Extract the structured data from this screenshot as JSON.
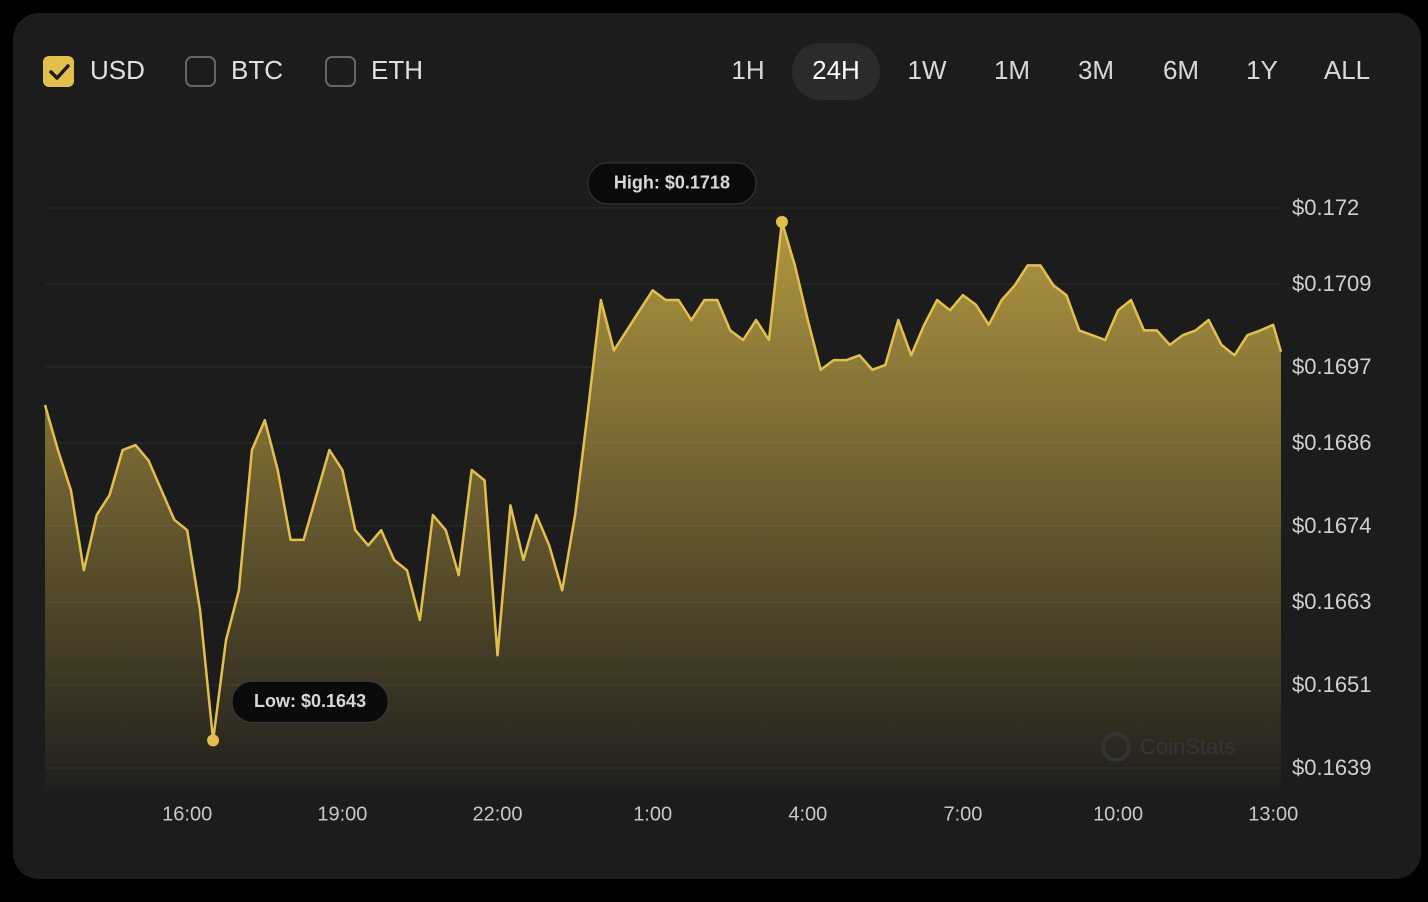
{
  "currencies": [
    {
      "label": "USD",
      "checked": true
    },
    {
      "label": "BTC",
      "checked": false
    },
    {
      "label": "ETH",
      "checked": false
    }
  ],
  "ranges": [
    {
      "label": "1H",
      "active": false
    },
    {
      "label": "24H",
      "active": true
    },
    {
      "label": "1W",
      "active": false
    },
    {
      "label": "1M",
      "active": false
    },
    {
      "label": "3M",
      "active": false
    },
    {
      "label": "6M",
      "active": false
    },
    {
      "label": "1Y",
      "active": false
    },
    {
      "label": "ALL",
      "active": false
    }
  ],
  "watermark": "CoinStats",
  "chart_data": {
    "type": "area",
    "color": "#e3c04d",
    "grid": true,
    "annotations": [
      "High: $0.1718",
      "Low: $0.1643"
    ],
    "x": [
      13.25,
      13.5,
      13.75,
      14,
      14.25,
      14.5,
      14.75,
      15,
      15.25,
      15.5,
      15.75,
      16,
      16.25,
      16.5,
      16.75,
      17,
      17.25,
      17.5,
      17.75,
      18,
      18.25,
      18.5,
      18.75,
      19,
      19.25,
      19.5,
      19.75,
      20,
      20.25,
      20.5,
      20.75,
      21,
      21.25,
      21.5,
      21.75,
      22,
      22.25,
      22.5,
      22.75,
      23,
      23.25,
      23.5,
      23.75,
      24,
      24.25,
      24.5,
      24.75,
      25,
      25.25,
      25.5,
      25.75,
      26,
      26.25,
      26.5,
      26.75,
      27,
      27.25,
      27.5,
      27.75,
      28,
      28.25,
      28.5,
      28.75,
      29,
      29.25,
      29.5,
      29.75,
      30,
      30.25,
      30.5,
      30.75,
      31,
      31.25,
      31.5,
      31.75,
      32,
      32.25,
      32.5,
      32.75,
      33,
      33.25,
      33.5,
      33.75,
      34,
      34.25,
      34.5,
      34.75,
      35,
      35.25,
      35.5,
      35.75,
      36,
      36.25,
      36.5,
      36.75,
      37,
      37.15
    ],
    "values": [
      0.16915,
      0.1685,
      0.16792,
      0.16676,
      0.16756,
      0.16785,
      0.1685,
      0.16857,
      0.16835,
      0.16792,
      0.16749,
      0.16734,
      0.16618,
      0.1643,
      0.16575,
      0.16647,
      0.1685,
      0.16893,
      0.16821,
      0.1672,
      0.1672,
      0.16785,
      0.1685,
      0.16821,
      0.16734,
      0.16712,
      0.16734,
      0.16691,
      0.16676,
      0.16604,
      0.16756,
      0.16734,
      0.16669,
      0.16821,
      0.16806,
      0.16553,
      0.1677,
      0.16691,
      0.16756,
      0.16712,
      0.16647,
      0.16756,
      0.16908,
      0.17067,
      0.16994,
      0.17023,
      0.17052,
      0.17081,
      0.17067,
      0.17067,
      0.17038,
      0.17067,
      0.17067,
      0.17023,
      0.17009,
      0.17038,
      0.17009,
      0.1718,
      0.17117,
      0.17038,
      0.16966,
      0.1698,
      0.1698,
      0.16987,
      0.16966,
      0.16973,
      0.17038,
      0.16987,
      0.17031,
      0.17067,
      0.17052,
      0.17074,
      0.1706,
      0.17031,
      0.17067,
      0.17088,
      0.17117,
      0.17117,
      0.17088,
      0.17074,
      0.17023,
      0.17016,
      0.17009,
      0.17052,
      0.17067,
      0.17023,
      0.17023,
      0.17002,
      0.17016,
      0.17023,
      0.17038,
      0.17002,
      0.16987,
      0.17016,
      0.17023,
      0.17031,
      0.16992
    ],
    "xlim": [
      13.25,
      37.15
    ],
    "xticks": [
      {
        "value": 16,
        "label": "16:00"
      },
      {
        "value": 19,
        "label": "19:00"
      },
      {
        "value": 22,
        "label": "22:00"
      },
      {
        "value": 25,
        "label": "1:00"
      },
      {
        "value": 28,
        "label": "4:00"
      },
      {
        "value": 31,
        "label": "7:00"
      },
      {
        "value": 34,
        "label": "10:00"
      },
      {
        "value": 37,
        "label": "13:00"
      }
    ],
    "ylim": [
      0.1639,
      0.172
    ],
    "yticks": [
      {
        "value": 0.172,
        "label": "$0.172"
      },
      {
        "value": 0.1709,
        "label": "$0.1709"
      },
      {
        "value": 0.1697,
        "label": "$0.1697"
      },
      {
        "value": 0.1686,
        "label": "$0.1686"
      },
      {
        "value": 0.1674,
        "label": "$0.1674"
      },
      {
        "value": 0.1663,
        "label": "$0.1663"
      },
      {
        "value": 0.1651,
        "label": "$0.1651"
      },
      {
        "value": 0.1639,
        "label": "$0.1639"
      }
    ]
  }
}
